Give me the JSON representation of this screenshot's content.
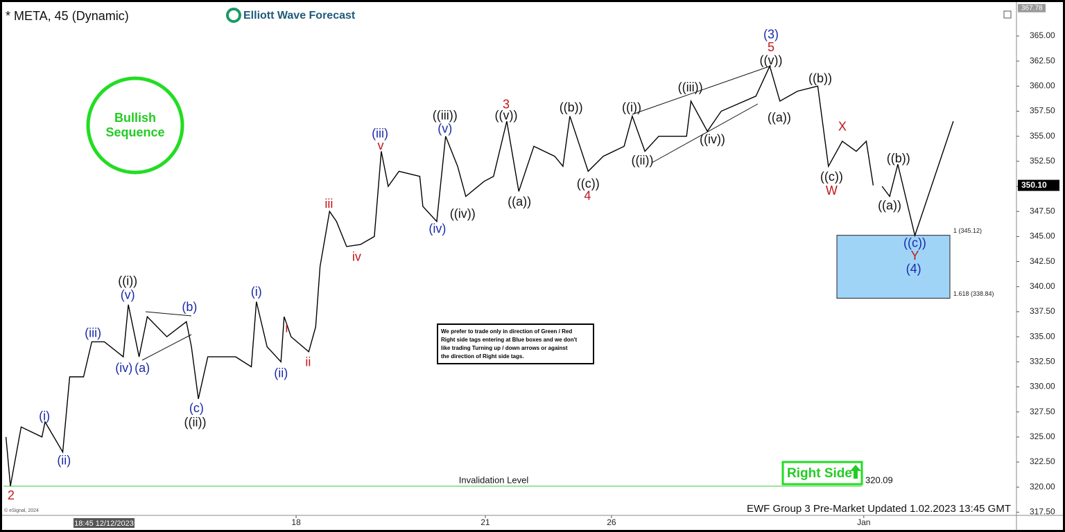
{
  "chart_data": {
    "type": "line",
    "title": "* META, 45 (Dynamic)",
    "brand": "Elliott Wave Forecast",
    "badge": "Bullish Sequence",
    "note": [
      "We prefer to trade only in direction of Green / Red",
      "Right side tags entering at Blue boxes and we don't",
      "like trading Turning up / down arrows or against",
      "the direction of Right side tags."
    ],
    "right_side_tag": "Right Side",
    "footer": "EWF Group 3 Pre-Market Updated 1.02.2023 13:45 GMT",
    "cursor_label": "18:45 12/12/2023",
    "copyright": "© eSignal, 2024",
    "xlim": [
      -4.64,
      11.41
    ],
    "ylim": [
      317.25,
      367.9
    ],
    "xticks": [
      {
        "value": 0,
        "label": "18"
      },
      {
        "value": 3,
        "label": "21"
      },
      {
        "value": 5,
        "label": "26"
      },
      {
        "value": 9,
        "label": "Jan"
      }
    ],
    "yticks": [
      {
        "value": 317.5,
        "label": "317.50"
      },
      {
        "value": 320,
        "label": "320.00"
      },
      {
        "value": 322.5,
        "label": "322.50"
      },
      {
        "value": 325,
        "label": "325.00"
      },
      {
        "value": 327.5,
        "label": "327.50"
      },
      {
        "value": 330,
        "label": "330.00"
      },
      {
        "value": 332.5,
        "label": "332.50"
      },
      {
        "value": 335,
        "label": "335.00"
      },
      {
        "value": 337.5,
        "label": "337.50"
      },
      {
        "value": 340,
        "label": "340.00"
      },
      {
        "value": 342.5,
        "label": "342.50"
      },
      {
        "value": 345,
        "label": "345.00"
      },
      {
        "value": 347.5,
        "label": "347.50"
      },
      {
        "value": 350,
        "label": "350.00"
      },
      {
        "value": 352.5,
        "label": "352.50"
      },
      {
        "value": 355,
        "label": "355.00"
      },
      {
        "value": 357.5,
        "label": "357.50"
      },
      {
        "value": 360,
        "label": "360.00"
      },
      {
        "value": 362.5,
        "label": "362.50"
      },
      {
        "value": 365,
        "label": "365.00"
      }
    ],
    "high_price": 367.78,
    "last_price": {
      "value": 350.1,
      "label": "350.10"
    },
    "invalidation": {
      "label": "Invalidation Level",
      "value": 320.09
    },
    "target_zone": {
      "from": 345.12,
      "to": 338.84,
      "labels": [
        "1 (345.12)",
        "1.618 (338.84)"
      ],
      "color": "#9fd4f7"
    },
    "series": [
      {
        "color": "#000000",
        "x": [
          -4.6,
          -4.53,
          -4.36,
          -4.03,
          -3.98,
          -3.7,
          -3.59,
          -3.37,
          -3.24,
          -3.04,
          -2.74,
          -2.66,
          -2.49,
          -2.36,
          -2.05,
          -1.74,
          -1.66,
          -1.55,
          -1.4,
          -0.96,
          -0.71,
          -0.63,
          -0.46,
          -0.24,
          -0.19,
          -0.08,
          0.2,
          0.31,
          0.38,
          0.53,
          0.64,
          0.8,
          1.02,
          1.24,
          1.35,
          1.46,
          1.63,
          1.96,
          2.01,
          2.23,
          2.37,
          2.56,
          2.69,
          2.98,
          3.13,
          3.34,
          3.53,
          3.77,
          4.1,
          4.23,
          4.34,
          4.63,
          4.87,
          5.2,
          5.33,
          5.53,
          5.75,
          6.19,
          6.26,
          6.52,
          6.74,
          7.29,
          7.51,
          7.67,
          7.95,
          8.27,
          8.44,
          8.66,
          8.88,
          9.04,
          9.15
        ],
        "values": [
          325,
          320.1,
          326,
          325,
          326.5,
          323.5,
          331,
          331,
          334.5,
          334.5,
          333,
          338.2,
          333,
          337,
          335,
          336.5,
          334,
          328.8,
          333,
          333,
          332,
          338.5,
          334,
          332.5,
          337,
          335,
          333.5,
          336,
          342,
          347.5,
          346.5,
          344,
          344.2,
          345,
          353.5,
          350,
          351.5,
          351,
          348,
          346.5,
          355,
          352,
          349,
          350.5,
          351,
          356.5,
          349.5,
          354,
          353,
          352,
          357,
          351.5,
          353,
          354,
          357,
          353.5,
          355,
          355,
          358.5,
          355.5,
          357.5,
          359,
          362,
          358.5,
          359.5,
          360,
          352,
          354.5,
          353.5,
          354.5,
          350.1
        ]
      },
      {
        "color": "#000000",
        "x": [
          9.29,
          9.41,
          9.54,
          9.81,
          10.42
        ],
        "values": [
          350,
          349,
          352.2,
          345.1,
          356.5
        ]
      }
    ],
    "annotations": [
      {
        "text": "2",
        "x": -4.52,
        "y": 319.1,
        "color": "#c0161c"
      },
      {
        "text": "(i)",
        "x": -3.99,
        "y": 327.0,
        "color": "#1a2aa8"
      },
      {
        "text": "(ii)",
        "x": -3.68,
        "y": 322.6,
        "color": "#1a2aa8"
      },
      {
        "text": "(iii)",
        "x": -3.22,
        "y": 335.3,
        "color": "#1a2aa8"
      },
      {
        "text": "((i))",
        "x": -2.67,
        "y": 340.5,
        "color": "#111111"
      },
      {
        "text": "(v)",
        "x": -2.67,
        "y": 339.1,
        "color": "#1a2aa8"
      },
      {
        "text": "(iv)",
        "x": -2.73,
        "y": 331.8,
        "color": "#1a2aa8"
      },
      {
        "text": "(a)",
        "x": -2.44,
        "y": 331.8,
        "color": "#1a2aa8"
      },
      {
        "text": "(b)",
        "x": -1.69,
        "y": 337.9,
        "color": "#1a2aa8"
      },
      {
        "text": "(c)",
        "x": -1.58,
        "y": 327.8,
        "color": "#1a2aa8"
      },
      {
        "text": "((ii))",
        "x": -1.6,
        "y": 326.4,
        "color": "#111111"
      },
      {
        "text": "(i)",
        "x": -0.63,
        "y": 339.4,
        "color": "#1a2aa8"
      },
      {
        "text": "(ii)",
        "x": -0.24,
        "y": 331.3,
        "color": "#1a2aa8"
      },
      {
        "text": "i",
        "x": -0.15,
        "y": 335.8,
        "color": "#c0161c"
      },
      {
        "text": "ii",
        "x": 0.19,
        "y": 332.4,
        "color": "#c0161c"
      },
      {
        "text": "iii",
        "x": 0.52,
        "y": 348.2,
        "color": "#c0161c"
      },
      {
        "text": "iv",
        "x": 0.96,
        "y": 342.9,
        "color": "#c0161c"
      },
      {
        "text": "(iii)",
        "x": 1.33,
        "y": 355.2,
        "color": "#1a2aa8"
      },
      {
        "text": "v",
        "x": 1.34,
        "y": 354.0,
        "color": "#c0161c"
      },
      {
        "text": "((iii))",
        "x": 2.36,
        "y": 357.0,
        "color": "#111111"
      },
      {
        "text": "(v)",
        "x": 2.36,
        "y": 355.7,
        "color": "#1a2aa8"
      },
      {
        "text": "(iv)",
        "x": 2.24,
        "y": 345.7,
        "color": "#1a2aa8"
      },
      {
        "text": "((iv))",
        "x": 2.64,
        "y": 347.2,
        "color": "#111111"
      },
      {
        "text": "3",
        "x": 3.33,
        "y": 358.1,
        "color": "#c0161c"
      },
      {
        "text": "((v))",
        "x": 3.33,
        "y": 357.0,
        "color": "#111111"
      },
      {
        "text": "((a))",
        "x": 3.54,
        "y": 348.4,
        "color": "#111111"
      },
      {
        "text": "((b))",
        "x": 4.36,
        "y": 357.8,
        "color": "#111111"
      },
      {
        "text": "((c))",
        "x": 4.63,
        "y": 350.2,
        "color": "#111111"
      },
      {
        "text": "4",
        "x": 4.62,
        "y": 349.0,
        "color": "#c0161c"
      },
      {
        "text": "((i))",
        "x": 5.32,
        "y": 357.8,
        "color": "#111111"
      },
      {
        "text": "((ii))",
        "x": 5.49,
        "y": 352.5,
        "color": "#111111"
      },
      {
        "text": "((iii))",
        "x": 6.25,
        "y": 359.8,
        "color": "#111111"
      },
      {
        "text": "((iv))",
        "x": 6.6,
        "y": 354.6,
        "color": "#111111"
      },
      {
        "text": "(3)",
        "x": 7.53,
        "y": 365.1,
        "color": "#1a2aa8"
      },
      {
        "text": "5",
        "x": 7.53,
        "y": 363.8,
        "color": "#c0161c"
      },
      {
        "text": "((v))",
        "x": 7.53,
        "y": 362.5,
        "color": "#111111"
      },
      {
        "text": "((a))",
        "x": 7.66,
        "y": 356.8,
        "color": "#111111"
      },
      {
        "text": "((b))",
        "x": 8.31,
        "y": 360.7,
        "color": "#111111"
      },
      {
        "text": "X",
        "x": 8.66,
        "y": 355.9,
        "color": "#c0161c"
      },
      {
        "text": "((c))",
        "x": 8.49,
        "y": 350.9,
        "color": "#111111"
      },
      {
        "text": "W",
        "x": 8.49,
        "y": 349.5,
        "color": "#c0161c"
      },
      {
        "text": "((b))",
        "x": 9.55,
        "y": 352.7,
        "color": "#111111"
      },
      {
        "text": "((a))",
        "x": 9.41,
        "y": 348.0,
        "color": "#111111"
      },
      {
        "text": "((c))",
        "x": 9.81,
        "y": 344.3,
        "color": "#1a2aa8"
      },
      {
        "text": "Y",
        "x": 9.81,
        "y": 343.0,
        "color": "#c0161c"
      },
      {
        "text": "(4)",
        "x": 9.79,
        "y": 341.7,
        "color": "#1a2aa8"
      }
    ]
  }
}
